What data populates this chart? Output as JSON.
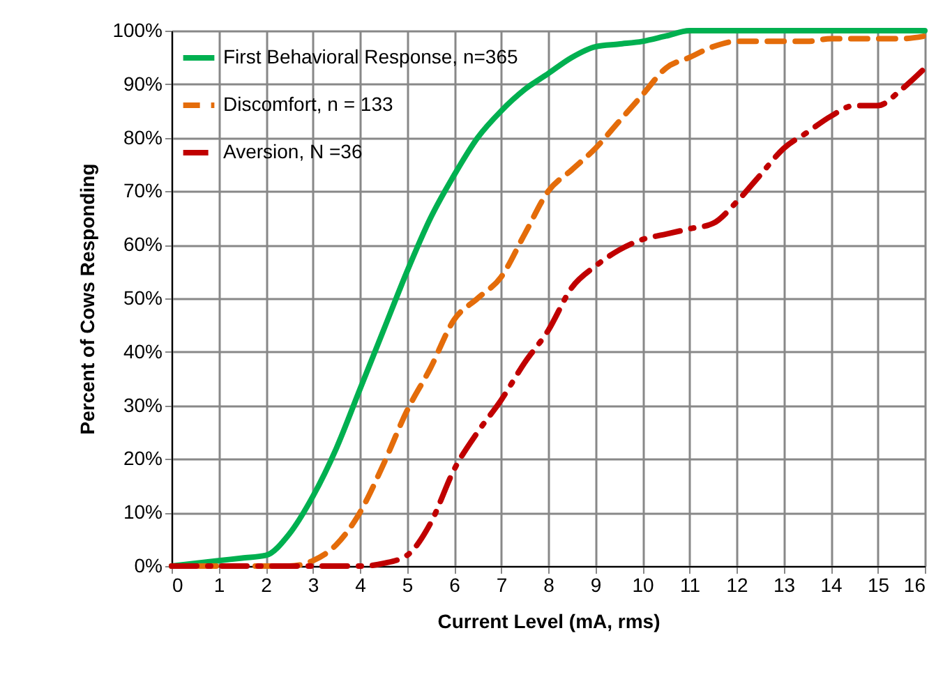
{
  "chart_data": {
    "type": "line",
    "xlabel": "Current Level (mA, rms)",
    "ylabel": "Percent of Cows Responding",
    "xlim": [
      0,
      16
    ],
    "xticks": [
      0,
      1,
      2,
      3,
      4,
      5,
      6,
      7,
      8,
      9,
      10,
      11,
      12,
      13,
      14,
      15,
      16
    ],
    "ylim": [
      0,
      100
    ],
    "yticks": [
      {
        "value": 0,
        "label": "0%"
      },
      {
        "value": 10,
        "label": "10%"
      },
      {
        "value": 20,
        "label": "20%"
      },
      {
        "value": 30,
        "label": "30%"
      },
      {
        "value": 40,
        "label": "40%"
      },
      {
        "value": 50,
        "label": "50%"
      },
      {
        "value": 60,
        "label": "60%"
      },
      {
        "value": 70,
        "label": "70%"
      },
      {
        "value": 80,
        "label": "80%"
      },
      {
        "value": 90,
        "label": "90%"
      },
      {
        "value": 100,
        "label": "100%"
      }
    ],
    "grid": true,
    "legend": "top left",
    "marker": "none",
    "x": [
      0,
      1,
      1.5,
      2,
      2.5,
      3,
      3.5,
      4,
      4.5,
      5,
      5.5,
      6,
      6.5,
      7,
      7.5,
      8,
      8.5,
      9,
      9.5,
      10,
      10.5,
      11,
      11.5,
      12,
      12.5,
      13,
      13.5,
      14,
      14.5,
      15,
      15.5,
      16
    ],
    "series": [
      {
        "name": "First Behavioral Response, n=365",
        "color": "#00b050",
        "line_style": "solid",
        "values": [
          0,
          1,
          1.5,
          2,
          6,
          13,
          22,
          33,
          44,
          55,
          65,
          73,
          80,
          85,
          89,
          92,
          95,
          97,
          97.5,
          98,
          99,
          100,
          100,
          100,
          100,
          100,
          100,
          100,
          100,
          100,
          100,
          100
        ]
      },
      {
        "name": "Discomfort, n = 133",
        "color": "#e46c0a",
        "line_style": "dashed",
        "values": [
          0,
          0,
          0,
          0,
          0,
          1,
          4,
          10,
          19,
          29,
          37,
          46,
          50,
          54,
          62,
          70,
          74,
          78,
          83,
          88,
          93,
          95,
          97,
          98,
          98,
          98,
          98,
          98.5,
          98.5,
          98.5,
          98.5,
          99
        ]
      },
      {
        "name": "Aversion, N =36",
        "color": "#c00000",
        "line_style": "dashdot",
        "values": [
          0,
          0,
          0,
          0,
          0,
          0,
          0,
          0,
          0.5,
          2,
          8,
          18,
          25,
          31,
          38,
          44,
          52,
          56,
          59,
          61,
          62,
          63,
          64,
          68,
          73,
          78,
          81,
          84,
          86,
          86,
          89,
          93
        ]
      }
    ]
  }
}
